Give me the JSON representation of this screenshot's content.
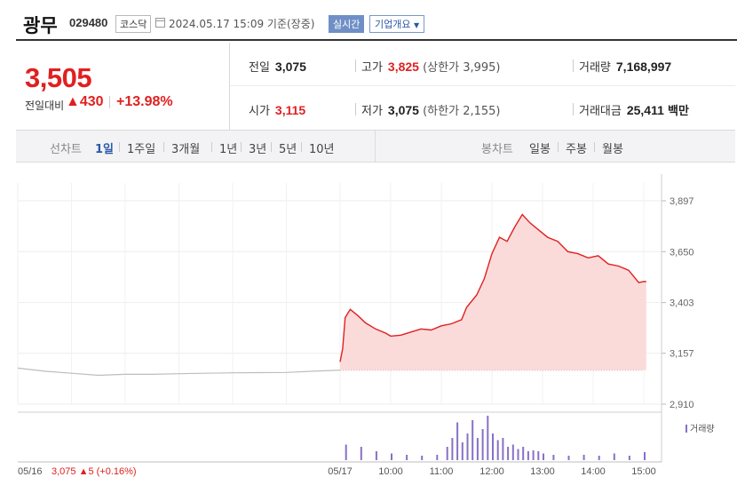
{
  "header": {
    "stock_name": "광무",
    "stock_code": "029480",
    "market": "코스닥",
    "datetime": "2024.05.17 15:09 기준(장중)",
    "realtime_label": "실시간",
    "company_info_label": "기업개요"
  },
  "summary": {
    "current_price": "3,505",
    "change_label": "전일대비",
    "change_amount": "▲430",
    "change_rate": "+13.98%",
    "prev_close_label": "전일",
    "prev_close": "3,075",
    "high_label": "고가",
    "high": "3,825",
    "upper_limit": "(상한가 3,995)",
    "volume_label": "거래량",
    "volume": "7,168,997",
    "open_label": "시가",
    "open": "3,115",
    "low_label": "저가",
    "low": "3,075",
    "lower_limit": "(하한가 2,155)",
    "trade_value_label": "거래대금",
    "trade_value": "25,411",
    "trade_value_unit": "백만"
  },
  "toolbar": {
    "line_chart_label": "선차트",
    "periods": [
      "1일",
      "1주일",
      "3개월",
      "1년",
      "3년",
      "5년",
      "10년"
    ],
    "active_period": "1일",
    "candle_chart_label": "봉차트",
    "candles": [
      "일봉",
      "주봉",
      "월봉"
    ]
  },
  "colors": {
    "up": "#e02020",
    "prev_day_line": "#bdbdbd",
    "volume": "#8870c6",
    "accent": "#2b58a8"
  },
  "chart_data": {
    "type": "line",
    "y_ticks": [
      "3,897",
      "3,650",
      "3,403",
      "3,157",
      "2,910"
    ],
    "ylim": [
      2910,
      3897
    ],
    "x_ticks": [
      "05/16",
      "05/17",
      "10:00",
      "11:00",
      "12:00",
      "13:00",
      "14:00",
      "15:00"
    ],
    "reference_line": 3075,
    "volume_label": "거래량",
    "footer_info": "05/16  3,075 ▲5 (+0.16%)",
    "series": [
      {
        "name": "05/16",
        "x": [
          0,
          0.5,
          1,
          1.5,
          2,
          2.5,
          3,
          3.5,
          4,
          4.5,
          5,
          5.5,
          6
        ],
        "values": [
          3085,
          3070,
          3060,
          3050,
          3055,
          3055,
          3058,
          3060,
          3062,
          3063,
          3064,
          3070,
          3075
        ]
      },
      {
        "name": "05/17",
        "x": [
          0,
          0.05,
          0.1,
          0.2,
          0.35,
          0.5,
          0.7,
          0.9,
          1.0,
          1.2,
          1.4,
          1.6,
          1.8,
          2.0,
          2.2,
          2.4,
          2.5,
          2.7,
          2.85,
          3.0,
          3.15,
          3.3,
          3.45,
          3.6,
          3.75,
          3.9,
          4.1,
          4.3,
          4.5,
          4.7,
          4.9,
          5.1,
          5.3,
          5.5,
          5.7,
          5.8,
          5.9,
          6.0,
          6.05
        ],
        "values": [
          3115,
          3180,
          3330,
          3370,
          3340,
          3305,
          3275,
          3255,
          3240,
          3245,
          3260,
          3275,
          3270,
          3290,
          3300,
          3320,
          3380,
          3440,
          3520,
          3640,
          3720,
          3700,
          3770,
          3830,
          3790,
          3760,
          3720,
          3700,
          3650,
          3640,
          3620,
          3630,
          3590,
          3580,
          3560,
          3530,
          3500,
          3505,
          3505
        ]
      }
    ],
    "volume_series": {
      "name": "거래량",
      "x": [
        0.1,
        0.4,
        0.7,
        1.0,
        1.3,
        1.6,
        1.9,
        2.1,
        2.2,
        2.3,
        2.4,
        2.5,
        2.6,
        2.7,
        2.8,
        2.9,
        3.0,
        3.1,
        3.2,
        3.3,
        3.4,
        3.5,
        3.6,
        3.7,
        3.8,
        3.9,
        4.0,
        4.2,
        4.5,
        4.8,
        5.1,
        5.4,
        5.7,
        6.0
      ],
      "values": [
        0.35,
        0.3,
        0.2,
        0.15,
        0.12,
        0.1,
        0.12,
        0.3,
        0.5,
        0.85,
        0.4,
        0.6,
        0.9,
        0.5,
        0.7,
        1.0,
        0.6,
        0.45,
        0.5,
        0.3,
        0.35,
        0.25,
        0.3,
        0.2,
        0.22,
        0.2,
        0.15,
        0.12,
        0.1,
        0.12,
        0.1,
        0.15,
        0.1,
        0.18
      ]
    }
  }
}
